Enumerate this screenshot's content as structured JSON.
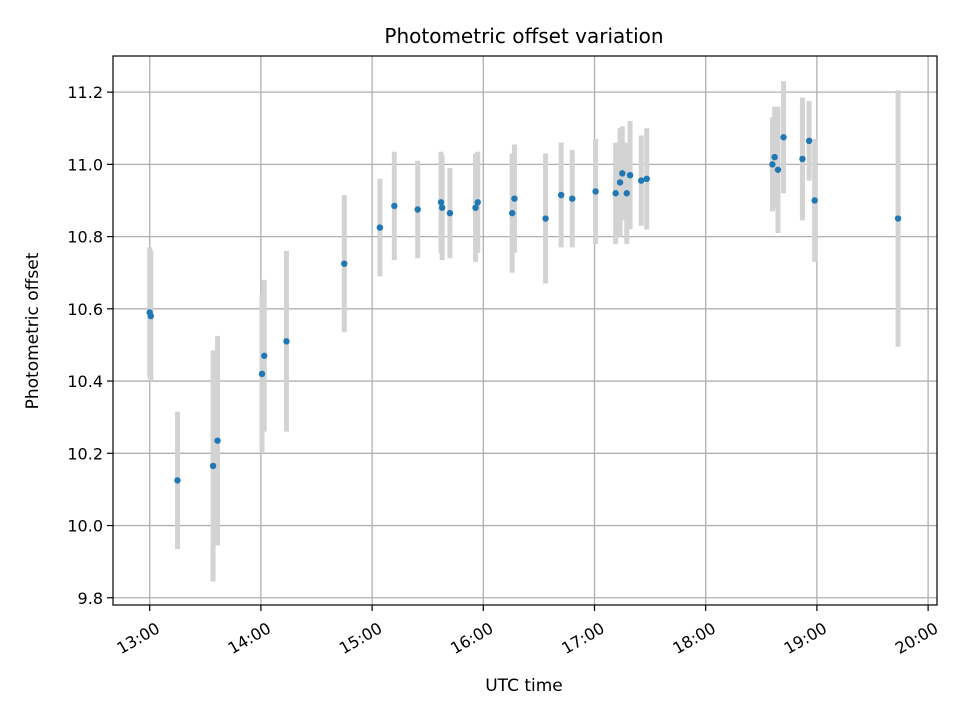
{
  "chart_data": {
    "type": "scatter",
    "title": "Photometric offset variation",
    "xlabel": "UTC time",
    "ylabel": "Photometric offset",
    "grid": true,
    "x_unit": "hours (UTC, decimal)",
    "xlim": [
      12.67,
      20.08
    ],
    "ylim": [
      9.78,
      11.3
    ],
    "x_ticks": [
      13,
      14,
      15,
      16,
      17,
      18,
      19,
      20
    ],
    "x_tick_labels": [
      "13:00",
      "14:00",
      "15:00",
      "16:00",
      "17:00",
      "18:00",
      "19:00",
      "20:00"
    ],
    "y_ticks": [
      9.8,
      10.0,
      10.2,
      10.4,
      10.6,
      10.8,
      11.0,
      11.2
    ],
    "y_tick_labels": [
      "9.8",
      "10.0",
      "10.2",
      "10.4",
      "10.6",
      "10.8",
      "11.0",
      "11.2"
    ],
    "colors": {
      "point": "#1f77b4",
      "errorbar": "#d3d3d3",
      "grid": "#b0b0b0"
    },
    "series": [
      {
        "name": "offset",
        "points": [
          {
            "x": 13.0,
            "y": 10.59,
            "err": 0.18
          },
          {
            "x": 13.01,
            "y": 10.58,
            "err": 0.18
          },
          {
            "x": 13.25,
            "y": 10.125,
            "err": 0.19
          },
          {
            "x": 13.57,
            "y": 10.165,
            "err": 0.32
          },
          {
            "x": 13.61,
            "y": 10.235,
            "err": 0.29
          },
          {
            "x": 14.01,
            "y": 10.42,
            "err": 0.22
          },
          {
            "x": 14.03,
            "y": 10.47,
            "err": 0.21
          },
          {
            "x": 14.23,
            "y": 10.51,
            "err": 0.25
          },
          {
            "x": 14.75,
            "y": 10.725,
            "err": 0.19
          },
          {
            "x": 15.07,
            "y": 10.825,
            "err": 0.135
          },
          {
            "x": 15.2,
            "y": 10.885,
            "err": 0.15
          },
          {
            "x": 15.41,
            "y": 10.875,
            "err": 0.135
          },
          {
            "x": 15.62,
            "y": 10.895,
            "err": 0.14
          },
          {
            "x": 15.63,
            "y": 10.88,
            "err": 0.145
          },
          {
            "x": 15.7,
            "y": 10.865,
            "err": 0.125
          },
          {
            "x": 15.93,
            "y": 10.88,
            "err": 0.15
          },
          {
            "x": 15.95,
            "y": 10.895,
            "err": 0.14
          },
          {
            "x": 16.26,
            "y": 10.865,
            "err": 0.165
          },
          {
            "x": 16.28,
            "y": 10.905,
            "err": 0.15
          },
          {
            "x": 16.56,
            "y": 10.85,
            "err": 0.18
          },
          {
            "x": 16.7,
            "y": 10.915,
            "err": 0.145
          },
          {
            "x": 16.8,
            "y": 10.905,
            "err": 0.135
          },
          {
            "x": 17.01,
            "y": 10.925,
            "err": 0.145
          },
          {
            "x": 17.19,
            "y": 10.92,
            "err": 0.14
          },
          {
            "x": 17.23,
            "y": 10.95,
            "err": 0.15
          },
          {
            "x": 17.25,
            "y": 10.975,
            "err": 0.13
          },
          {
            "x": 17.29,
            "y": 10.92,
            "err": 0.14
          },
          {
            "x": 17.32,
            "y": 10.97,
            "err": 0.15
          },
          {
            "x": 17.42,
            "y": 10.955,
            "err": 0.125
          },
          {
            "x": 17.47,
            "y": 10.96,
            "err": 0.14
          },
          {
            "x": 18.6,
            "y": 11.0,
            "err": 0.13
          },
          {
            "x": 18.62,
            "y": 11.02,
            "err": 0.14
          },
          {
            "x": 18.65,
            "y": 10.985,
            "err": 0.175
          },
          {
            "x": 18.7,
            "y": 11.075,
            "err": 0.155
          },
          {
            "x": 18.87,
            "y": 11.015,
            "err": 0.17
          },
          {
            "x": 18.93,
            "y": 11.065,
            "err": 0.11
          },
          {
            "x": 18.98,
            "y": 10.9,
            "err": 0.17
          },
          {
            "x": 19.73,
            "y": 10.85,
            "err": 0.355
          }
        ]
      }
    ]
  }
}
